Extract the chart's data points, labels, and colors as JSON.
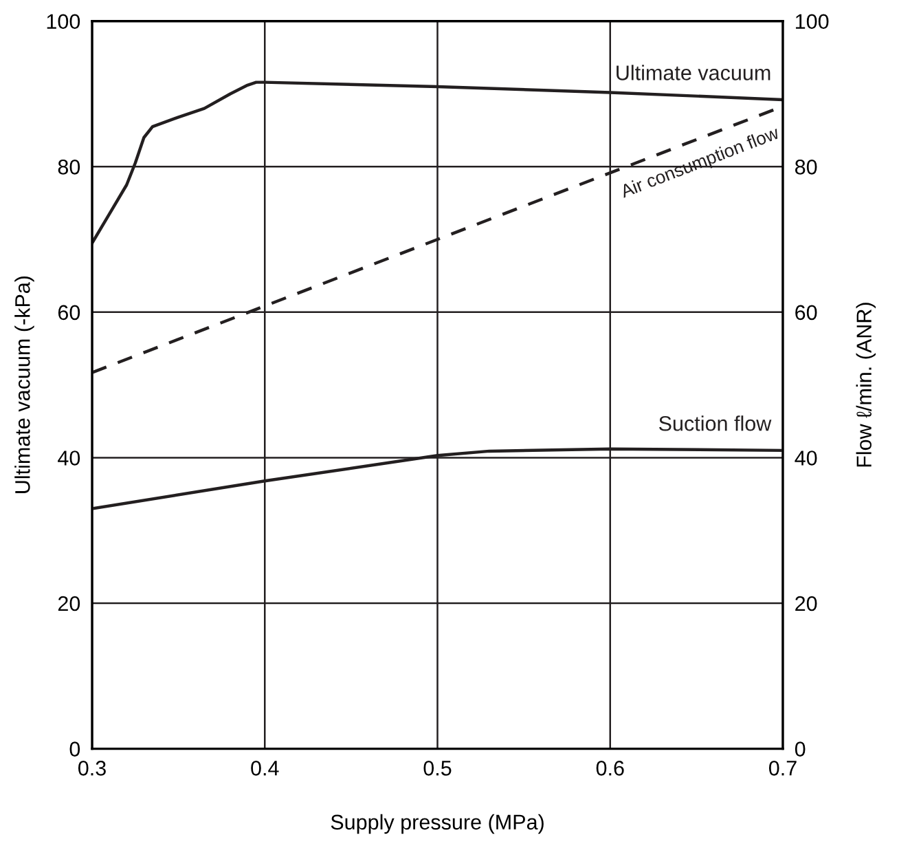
{
  "chart_data": {
    "type": "line",
    "xlabel": "Supply pressure (MPa)",
    "ylabel": "Ultimate vacuum (-kPa)",
    "y2label": "Flow ℓ/min. (ANR)",
    "xlim": [
      0.3,
      0.7
    ],
    "xticks": [
      0.3,
      0.4,
      0.5,
      0.6,
      0.7
    ],
    "ylim": [
      0,
      100
    ],
    "yticks": [
      0,
      20,
      40,
      60,
      80,
      100
    ],
    "y2lim": [
      0,
      100
    ],
    "y2ticks": [
      0,
      20,
      40,
      60,
      80,
      100
    ],
    "grid": true,
    "series": [
      {
        "name": "Ultimate vacuum",
        "color": "#231f20",
        "line_style": "solid",
        "x": [
          0.3,
          0.31,
          0.32,
          0.325,
          0.33,
          0.335,
          0.35,
          0.365,
          0.38,
          0.39,
          0.395,
          0.4,
          0.5,
          0.6,
          0.7
        ],
        "values": [
          69.5,
          73.5,
          77.5,
          80.5,
          84,
          85.5,
          86.8,
          88,
          90,
          91.2,
          91.6,
          91.6,
          91,
          90.2,
          89.2
        ]
      },
      {
        "name": "Air consumption flow",
        "color": "#231f20",
        "line_style": "dashed",
        "axis": "y2",
        "x": [
          0.3,
          0.7
        ],
        "values": [
          51.7,
          88.3
        ]
      },
      {
        "name": "Suction flow",
        "color": "#231f20",
        "line_style": "solid",
        "axis": "y2",
        "x": [
          0.3,
          0.4,
          0.5,
          0.53,
          0.6,
          0.7
        ],
        "values": [
          33,
          36.8,
          40.3,
          40.9,
          41.2,
          41
        ]
      }
    ]
  }
}
